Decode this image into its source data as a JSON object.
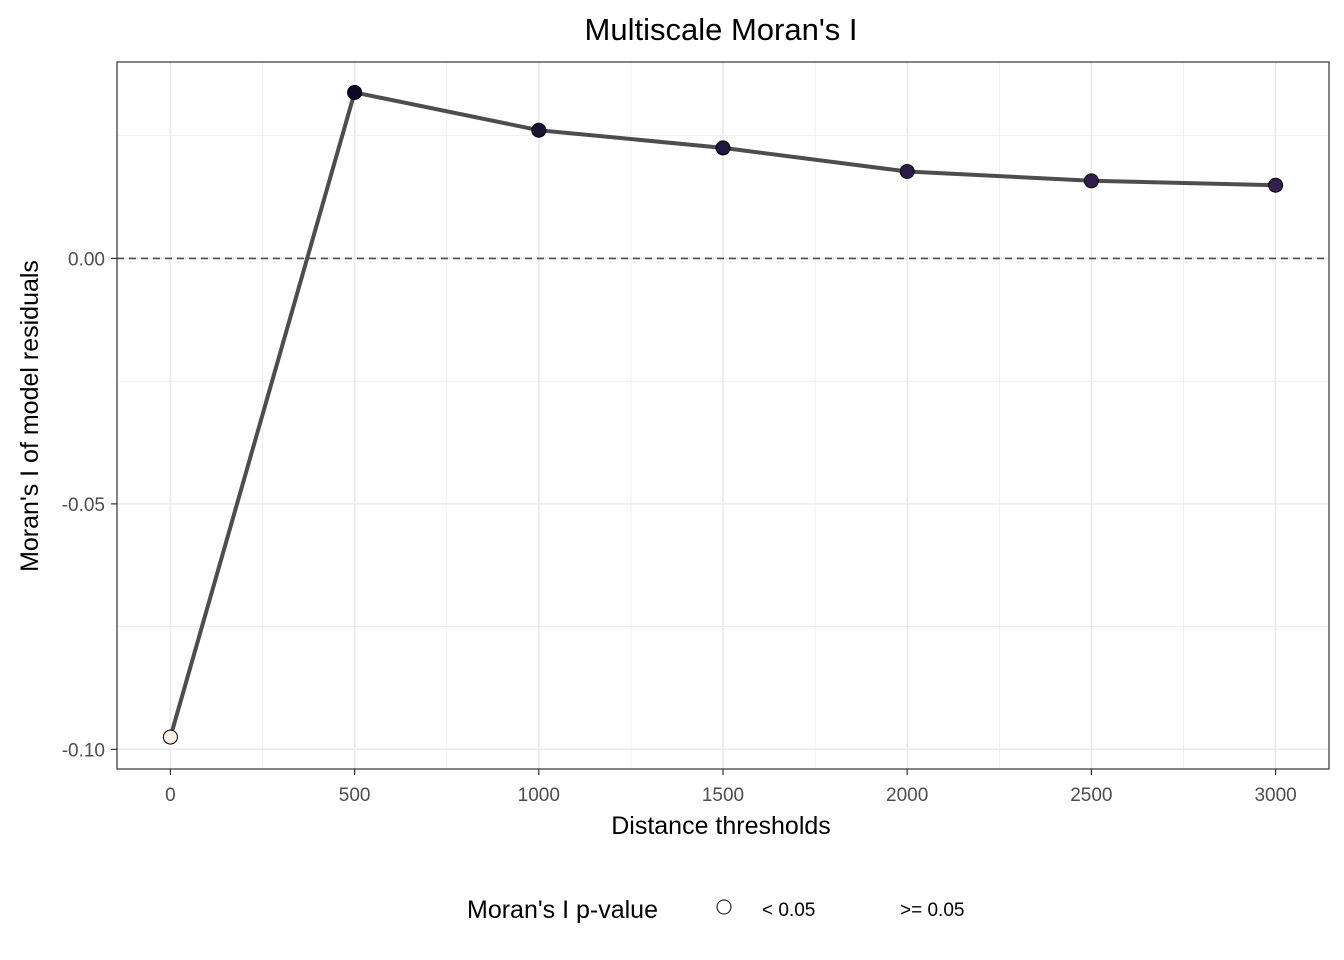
{
  "chart_data": {
    "type": "line",
    "title": "Multiscale Moran's I",
    "xlabel": "Distance thresholds",
    "ylabel": "Moran's I of model residuals",
    "x": [
      0,
      500,
      1000,
      1500,
      2000,
      2500,
      3000
    ],
    "series": [
      {
        "values": [
          -0.0975,
          0.0338,
          0.0261,
          0.0225,
          0.0177,
          0.0158,
          0.0149
        ],
        "p_value_group": [
          "< 0.05",
          ">= 0.05",
          ">= 0.05",
          ">= 0.05",
          ">= 0.05",
          ">= 0.05",
          ">= 0.05"
        ]
      }
    ],
    "xlim": [
      -145,
      3145
    ],
    "ylim": [
      -0.104,
      0.04
    ],
    "x_ticks": [
      0,
      500,
      1000,
      1500,
      2000,
      2500,
      3000
    ],
    "x_tick_labels": [
      "0",
      "500",
      "1000",
      "1500",
      "2000",
      "2500",
      "3000"
    ],
    "y_ticks": [
      -0.1,
      -0.05,
      0.0
    ],
    "y_tick_labels": [
      "-0.10",
      "-0.05",
      "0.00"
    ],
    "reference_line": {
      "y": 0,
      "style": "dashed"
    },
    "grid": true,
    "legend": {
      "title": "Moran's I p-value",
      "position": "bottom",
      "entries": [
        "< 0.05",
        ">= 0.05"
      ]
    },
    "colors": {
      "line": "#4d4d4d",
      "point_fill": [
        "#fbefe6",
        "#0b0924",
        "#1c1233",
        "#22163a",
        "#2b1a45",
        "#301d4b",
        "#341f50"
      ],
      "grid": "#ebebeb",
      "reference_line": "#4d4d4d"
    }
  }
}
